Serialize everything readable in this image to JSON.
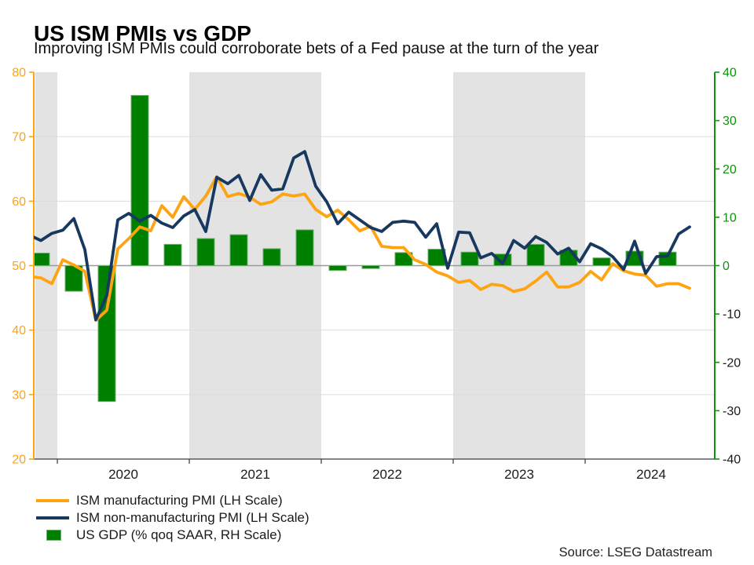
{
  "header": {
    "title": "US ISM PMIs vs GDP",
    "subtitle": "Improving ISM PMIs could corroborate bets of a Fed pause at the turn of the year"
  },
  "source_note": "Source: LSEG Datastream",
  "colors": {
    "manufacturing": "#FFA311",
    "non_manufacturing": "#17395F",
    "gdp_bar": "#008000",
    "gdp_bar_border": "#6FB06F",
    "left_axis": "#FFA311",
    "right_axis": "#0E930E",
    "right_axis_negative_label": "#1A1A1A",
    "grid": "#DCDCDC",
    "zero_line": "#999999",
    "shaded_band": "#E3E3E3",
    "x_axis": "#3A3A3A",
    "text": "#1A1A1A"
  },
  "legend": {
    "items": [
      {
        "label": "ISM manufacturing PMI (LH Scale)",
        "swatch": "line",
        "color_key": "manufacturing"
      },
      {
        "label": "ISM non-manufacturing PMI (LH Scale)",
        "swatch": "line",
        "color_key": "non_manufacturing"
      },
      {
        "label": "US GDP (% qoq SAAR, RH Scale)",
        "swatch": "box",
        "color_key": "gdp_bar"
      }
    ]
  },
  "chart_data": {
    "type": "combo line+bar",
    "title": "US ISM PMIs vs GDP",
    "frequency_lines": "monthly",
    "frequency_bars": "quarterly",
    "months_start": "2019-10",
    "months_end": "2024-10",
    "left_axis": {
      "min": 20,
      "max": 80,
      "ticks": [
        80,
        70,
        60,
        50,
        40,
        30,
        20
      ]
    },
    "right_axis": {
      "min": -40,
      "max": 40,
      "ticks": [
        40,
        30,
        20,
        10,
        0,
        -10,
        -20,
        -30,
        -40
      ]
    },
    "x_tick_years": [
      "2020",
      "2021",
      "2022",
      "2023",
      "2024"
    ],
    "shaded_periods": [
      [
        "2019-11",
        "2020-01"
      ],
      [
        "2021-01",
        "2022-01"
      ],
      [
        "2023-01",
        "2024-01"
      ]
    ],
    "grid": "horizontal only",
    "legend_position": "bottom-left",
    "series": [
      {
        "name": "ISM manufacturing PMI (LH Scale)",
        "type": "line",
        "axis": "left",
        "color_key": "manufacturing",
        "values": [
          48.3,
          48.1,
          47.2,
          50.9,
          50.1,
          49.1,
          41.5,
          43.1,
          52.6,
          54.2,
          56.0,
          55.4,
          59.3,
          57.5,
          60.7,
          58.7,
          60.8,
          63.8,
          60.7,
          61.2,
          60.6,
          59.5,
          59.9,
          61.1,
          60.8,
          61.1,
          58.7,
          57.6,
          58.6,
          57.1,
          55.4,
          56.1,
          53.0,
          52.8,
          52.8,
          50.9,
          50.2,
          49.0,
          48.4,
          47.4,
          47.7,
          46.3,
          47.1,
          46.9,
          46.0,
          46.4,
          47.6,
          49.0,
          46.7,
          46.7,
          47.4,
          49.1,
          47.8,
          50.3,
          49.2,
          48.7,
          48.5,
          46.8,
          47.2,
          47.2,
          46.5
        ]
      },
      {
        "name": "ISM non-manufacturing PMI (LH Scale)",
        "type": "line",
        "axis": "left",
        "color_key": "non_manufacturing",
        "values": [
          54.7,
          53.9,
          55.0,
          55.5,
          57.3,
          52.5,
          41.6,
          45.4,
          57.1,
          58.1,
          56.9,
          57.8,
          56.6,
          55.9,
          57.7,
          58.7,
          55.3,
          63.7,
          62.7,
          64.0,
          60.1,
          64.1,
          61.7,
          61.9,
          66.7,
          67.7,
          62.3,
          59.9,
          56.5,
          58.3,
          57.1,
          55.9,
          55.3,
          56.7,
          56.9,
          56.7,
          54.4,
          56.5,
          49.6,
          55.2,
          55.1,
          51.2,
          51.9,
          50.3,
          53.9,
          52.7,
          54.5,
          53.6,
          51.8,
          52.7,
          50.6,
          53.4,
          52.6,
          51.4,
          49.4,
          53.8,
          48.8,
          51.4,
          51.5,
          54.9,
          56.0
        ]
      }
    ],
    "bars": {
      "name": "US GDP (% qoq SAAR, RH Scale)",
      "axis": "right",
      "color_key": "gdp_bar",
      "quarters": [
        "2019 Q4",
        "2020 Q1",
        "2020 Q2",
        "2020 Q3",
        "2020 Q4",
        "2021 Q1",
        "2021 Q2",
        "2021 Q3",
        "2021 Q4",
        "2022 Q1",
        "2022 Q2",
        "2022 Q3",
        "2022 Q4",
        "2023 Q1",
        "2023 Q2",
        "2023 Q3",
        "2023 Q4",
        "2024 Q1",
        "2024 Q2",
        "2024 Q3"
      ],
      "values": [
        2.6,
        -5.3,
        -28.1,
        35.2,
        4.4,
        5.6,
        6.4,
        3.5,
        7.4,
        -1.0,
        -0.6,
        2.7,
        3.4,
        2.8,
        2.4,
        4.4,
        3.2,
        1.6,
        3.0,
        2.8
      ]
    }
  }
}
